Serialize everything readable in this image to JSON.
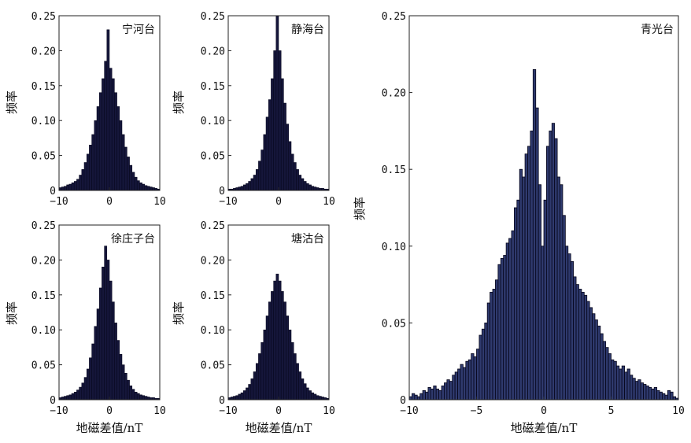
{
  "chart_data": [
    {
      "type": "bar",
      "station": "宁河台",
      "xlim": [
        -10,
        10
      ],
      "ylim": [
        0,
        0.25
      ],
      "xticks": [
        "−10",
        "0",
        "10"
      ],
      "yticks": [
        "0",
        "0.05",
        "0.10",
        "0.15",
        "0.20",
        "0.25"
      ],
      "xlabel": "",
      "ylabel": "频率",
      "bin_centers": [
        -9.75,
        -9.25,
        -8.75,
        -8.25,
        -7.75,
        -7.25,
        -6.75,
        -6.25,
        -5.75,
        -5.25,
        -4.75,
        -4.25,
        -3.75,
        -3.25,
        -2.75,
        -2.25,
        -1.75,
        -1.25,
        -0.75,
        -0.25,
        0.25,
        0.75,
        1.25,
        1.75,
        2.25,
        2.75,
        3.25,
        3.75,
        4.25,
        4.75,
        5.25,
        5.75,
        6.25,
        6.75,
        7.25,
        7.75,
        8.25,
        8.75,
        9.25,
        9.75
      ],
      "values": [
        0.004,
        0.005,
        0.006,
        0.008,
        0.009,
        0.011,
        0.013,
        0.016,
        0.022,
        0.03,
        0.04,
        0.052,
        0.065,
        0.08,
        0.1,
        0.12,
        0.14,
        0.16,
        0.185,
        0.23,
        0.175,
        0.16,
        0.14,
        0.12,
        0.1,
        0.08,
        0.062,
        0.048,
        0.036,
        0.026,
        0.019,
        0.014,
        0.011,
        0.009,
        0.007,
        0.006,
        0.005,
        0.004,
        0.003,
        0.002
      ]
    },
    {
      "type": "bar",
      "station": "静海台",
      "xlim": [
        -10,
        10
      ],
      "ylim": [
        0,
        0.25
      ],
      "xticks": [
        "−10",
        "0",
        "10"
      ],
      "yticks": [
        "0",
        "0.05",
        "0.10",
        "0.15",
        "0.20",
        "0.25"
      ],
      "xlabel": "",
      "ylabel": "频率",
      "bin_centers": [
        -9.75,
        -9.25,
        -8.75,
        -8.25,
        -7.75,
        -7.25,
        -6.75,
        -6.25,
        -5.75,
        -5.25,
        -4.75,
        -4.25,
        -3.75,
        -3.25,
        -2.75,
        -2.25,
        -1.75,
        -1.25,
        -0.75,
        -0.25,
        0.25,
        0.75,
        1.25,
        1.75,
        2.25,
        2.75,
        3.25,
        3.75,
        4.25,
        4.75,
        5.25,
        5.75,
        6.25,
        6.75,
        7.25,
        7.75,
        8.25,
        8.75,
        9.25,
        9.75
      ],
      "values": [
        0.002,
        0.002,
        0.003,
        0.004,
        0.005,
        0.006,
        0.008,
        0.01,
        0.013,
        0.017,
        0.022,
        0.03,
        0.042,
        0.058,
        0.08,
        0.105,
        0.13,
        0.16,
        0.2,
        0.25,
        0.2,
        0.16,
        0.125,
        0.095,
        0.07,
        0.052,
        0.04,
        0.03,
        0.022,
        0.017,
        0.013,
        0.01,
        0.008,
        0.006,
        0.005,
        0.004,
        0.003,
        0.003,
        0.002,
        0.002
      ]
    },
    {
      "type": "bar",
      "station": "徐庄子台",
      "xlim": [
        -10,
        10
      ],
      "ylim": [
        0,
        0.25
      ],
      "xticks": [
        "−10",
        "0",
        "10"
      ],
      "yticks": [
        "0",
        "0.05",
        "0.10",
        "0.15",
        "0.20",
        "0.25"
      ],
      "xlabel": "地磁差值/nT",
      "ylabel": "频率",
      "bin_centers": [
        -9.75,
        -9.25,
        -8.75,
        -8.25,
        -7.75,
        -7.25,
        -6.75,
        -6.25,
        -5.75,
        -5.25,
        -4.75,
        -4.25,
        -3.75,
        -3.25,
        -2.75,
        -2.25,
        -1.75,
        -1.25,
        -0.75,
        -0.25,
        0.25,
        0.75,
        1.25,
        1.75,
        2.25,
        2.75,
        3.25,
        3.75,
        4.25,
        4.75,
        5.25,
        5.75,
        6.25,
        6.75,
        7.25,
        7.75,
        8.25,
        8.75,
        9.25,
        9.75
      ],
      "values": [
        0.003,
        0.004,
        0.005,
        0.006,
        0.007,
        0.009,
        0.011,
        0.014,
        0.018,
        0.024,
        0.032,
        0.044,
        0.06,
        0.08,
        0.105,
        0.13,
        0.16,
        0.19,
        0.22,
        0.2,
        0.17,
        0.14,
        0.11,
        0.085,
        0.065,
        0.05,
        0.038,
        0.028,
        0.02,
        0.015,
        0.011,
        0.009,
        0.007,
        0.006,
        0.005,
        0.004,
        0.003,
        0.003,
        0.002,
        0.002
      ]
    },
    {
      "type": "bar",
      "station": "塘沽台",
      "xlim": [
        -10,
        10
      ],
      "ylim": [
        0,
        0.25
      ],
      "xticks": [
        "−10",
        "0",
        "10"
      ],
      "yticks": [
        "0",
        "0.05",
        "0.10",
        "0.15",
        "0.20",
        "0.25"
      ],
      "xlabel": "地磁差值/nT",
      "ylabel": "频率",
      "bin_centers": [
        -9.75,
        -9.25,
        -8.75,
        -8.25,
        -7.75,
        -7.25,
        -6.75,
        -6.25,
        -5.75,
        -5.25,
        -4.75,
        -4.25,
        -3.75,
        -3.25,
        -2.75,
        -2.25,
        -1.75,
        -1.25,
        -0.75,
        -0.25,
        0.25,
        0.75,
        1.25,
        1.75,
        2.25,
        2.75,
        3.25,
        3.75,
        4.25,
        4.75,
        5.25,
        5.75,
        6.25,
        6.75,
        7.25,
        7.75,
        8.25,
        8.75,
        9.25,
        9.75
      ],
      "values": [
        0.003,
        0.004,
        0.005,
        0.006,
        0.008,
        0.01,
        0.013,
        0.017,
        0.022,
        0.03,
        0.04,
        0.052,
        0.066,
        0.082,
        0.1,
        0.12,
        0.14,
        0.155,
        0.17,
        0.18,
        0.17,
        0.155,
        0.14,
        0.12,
        0.1,
        0.082,
        0.066,
        0.052,
        0.04,
        0.03,
        0.023,
        0.017,
        0.013,
        0.01,
        0.008,
        0.006,
        0.005,
        0.004,
        0.003,
        0.002
      ]
    },
    {
      "type": "bar",
      "station": "青光台",
      "xlim": [
        -10,
        10
      ],
      "ylim": [
        0,
        0.25
      ],
      "xticks": [
        "−10",
        "−5",
        "0",
        "5",
        "10"
      ],
      "yticks": [
        "0",
        "0.05",
        "0.10",
        "0.15",
        "0.20",
        "0.25"
      ],
      "xlabel": "地磁差值/nT",
      "ylabel": "频率",
      "bin_centers": [
        -9.9,
        -9.7,
        -9.5,
        -9.3,
        -9.1,
        -8.9,
        -8.7,
        -8.5,
        -8.3,
        -8.1,
        -7.9,
        -7.7,
        -7.5,
        -7.3,
        -7.1,
        -6.9,
        -6.7,
        -6.5,
        -6.3,
        -6.1,
        -5.9,
        -5.7,
        -5.5,
        -5.3,
        -5.1,
        -4.9,
        -4.7,
        -4.5,
        -4.3,
        -4.1,
        -3.9,
        -3.7,
        -3.5,
        -3.3,
        -3.1,
        -2.9,
        -2.7,
        -2.5,
        -2.3,
        -2.1,
        -1.9,
        -1.7,
        -1.5,
        -1.3,
        -1.1,
        -0.9,
        -0.7,
        -0.5,
        -0.3,
        -0.1,
        0.1,
        0.3,
        0.5,
        0.7,
        0.9,
        1.1,
        1.3,
        1.5,
        1.7,
        1.9,
        2.1,
        2.3,
        2.5,
        2.7,
        2.9,
        3.1,
        3.3,
        3.5,
        3.7,
        3.9,
        4.1,
        4.3,
        4.5,
        4.7,
        4.9,
        5.1,
        5.3,
        5.5,
        5.7,
        5.9,
        6.1,
        6.3,
        6.5,
        6.7,
        6.9,
        7.1,
        7.3,
        7.5,
        7.7,
        7.9,
        8.1,
        8.3,
        8.5,
        8.7,
        8.9,
        9.1,
        9.3,
        9.5,
        9.7,
        9.9
      ],
      "values": [
        0.002,
        0.004,
        0.003,
        0.002,
        0.004,
        0.006,
        0.005,
        0.008,
        0.007,
        0.009,
        0.007,
        0.006,
        0.009,
        0.011,
        0.013,
        0.012,
        0.016,
        0.018,
        0.02,
        0.023,
        0.021,
        0.025,
        0.026,
        0.03,
        0.028,
        0.033,
        0.042,
        0.046,
        0.05,
        0.063,
        0.07,
        0.072,
        0.078,
        0.088,
        0.092,
        0.094,
        0.102,
        0.105,
        0.11,
        0.125,
        0.13,
        0.15,
        0.145,
        0.16,
        0.165,
        0.175,
        0.215,
        0.19,
        0.14,
        0.1,
        0.13,
        0.165,
        0.175,
        0.18,
        0.17,
        0.145,
        0.14,
        0.12,
        0.1,
        0.095,
        0.09,
        0.08,
        0.075,
        0.072,
        0.07,
        0.068,
        0.064,
        0.06,
        0.056,
        0.052,
        0.048,
        0.043,
        0.038,
        0.034,
        0.03,
        0.026,
        0.025,
        0.022,
        0.02,
        0.022,
        0.018,
        0.02,
        0.016,
        0.014,
        0.012,
        0.013,
        0.011,
        0.01,
        0.009,
        0.008,
        0.007,
        0.008,
        0.006,
        0.005,
        0.004,
        0.003,
        0.006,
        0.005,
        0.002,
        0.001
      ]
    }
  ]
}
